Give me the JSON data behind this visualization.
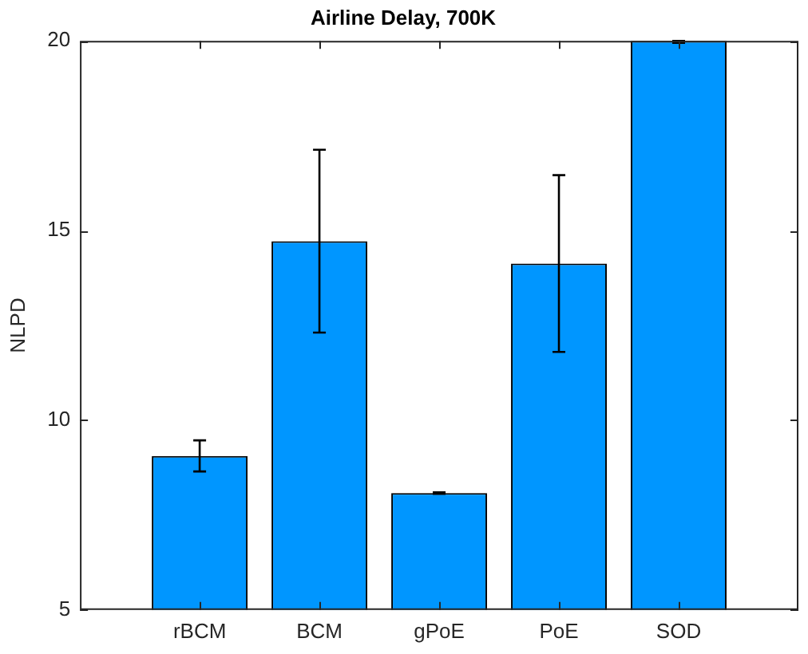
{
  "chart_data": {
    "type": "bar",
    "title": "Airline Delay, 700K",
    "ylabel": "NLPD",
    "categories": [
      "rBCM",
      "BCM",
      "gPoE",
      "PoE",
      "SOD"
    ],
    "values": [
      9.06,
      14.72,
      8.08,
      14.13,
      20
    ],
    "errors": [
      0.41,
      2.41,
      0.02,
      2.33,
      [
        19.95,
        20
      ]
    ],
    "color": "#0096ff",
    "ylim": [
      5,
      20
    ],
    "yticks": [
      5,
      10,
      15,
      20
    ],
    "grid": false,
    "legend": false
  }
}
